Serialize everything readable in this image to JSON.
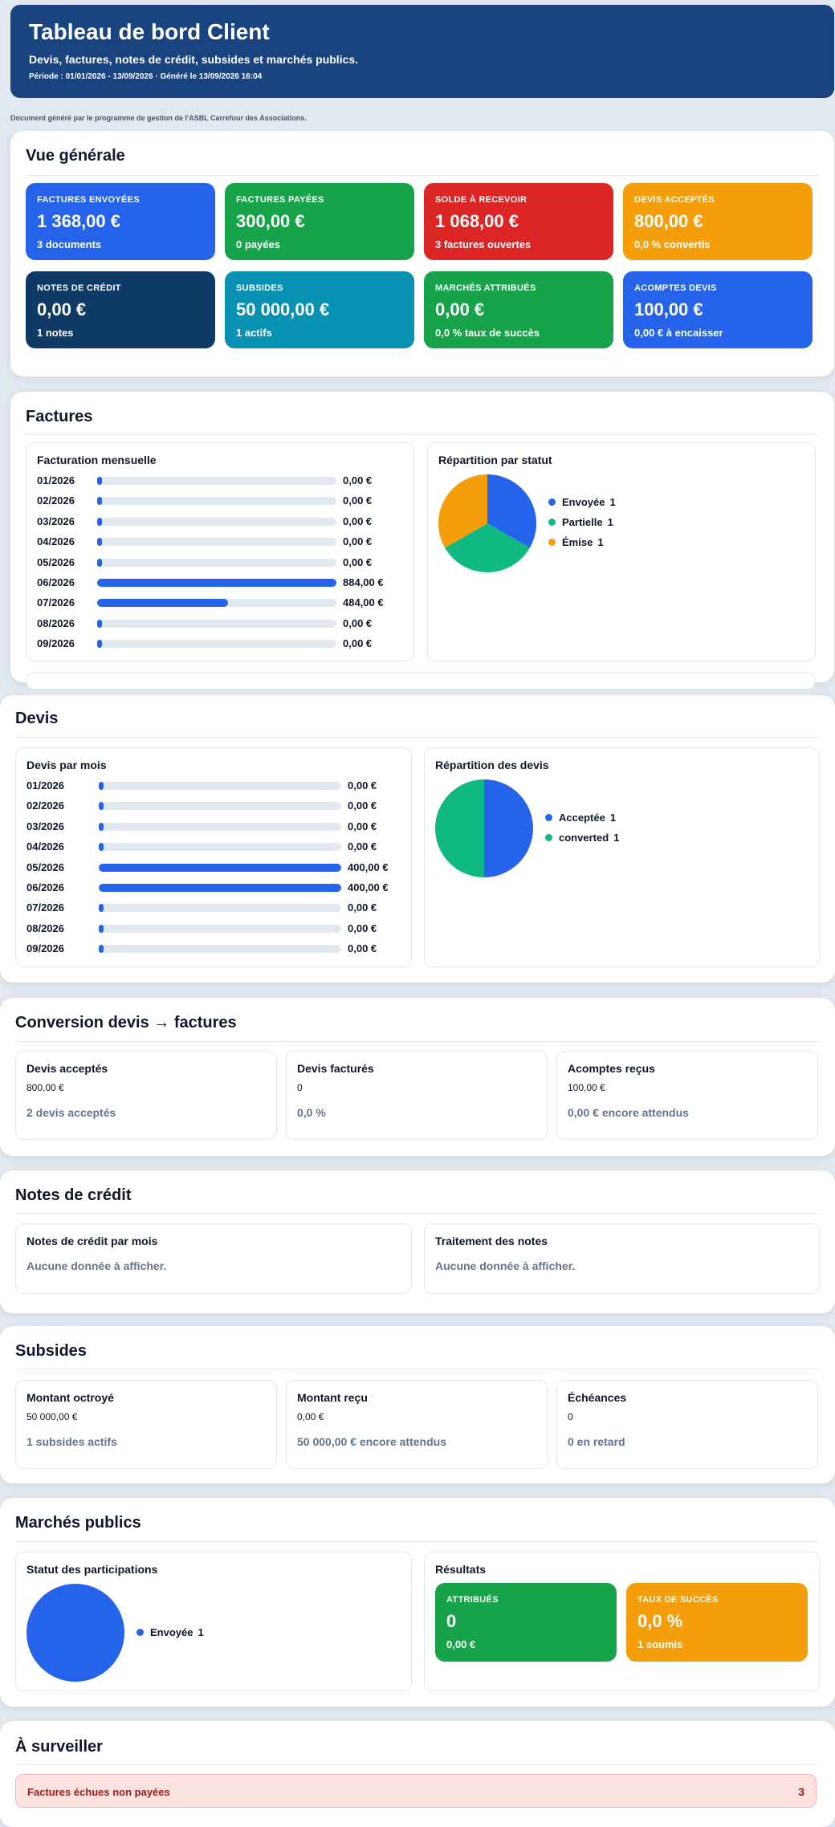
{
  "header": {
    "title": "Tableau de bord Client",
    "subtitle": "Devis, factures, notes de crédit, subsides et marchés publics.",
    "period": "Période : 01/01/2026 - 13/09/2026 · Généré le 13/09/2026 16:04"
  },
  "note": "Document généré par le programme de gestion de l'ASBL Carrefour des Associations.",
  "overview": {
    "title": "Vue générale",
    "cards": [
      {
        "label": "Factures envoyées",
        "value": "1 368,00 €",
        "sub": "3 documents",
        "color": "#2563eb"
      },
      {
        "label": "Factures payées",
        "value": "300,00 €",
        "sub": "0 payées",
        "color": "#16a34a"
      },
      {
        "label": "Solde à recevoir",
        "value": "1 068,00 €",
        "sub": "3 factures ouvertes",
        "color": "#dc2626"
      },
      {
        "label": "Devis acceptés",
        "value": "800,00 €",
        "sub": "0,0 % convertis",
        "color": "#f59e0b"
      },
      {
        "label": "Notes de crédit",
        "value": "0,00 €",
        "sub": "1 notes",
        "color": "#0f3a66"
      },
      {
        "label": "Subsides",
        "value": "50 000,00 €",
        "sub": "1 actifs",
        "color": "#0891b2"
      },
      {
        "label": "Marchés attribués",
        "value": "0,00 €",
        "sub": "0,0 % taux de succès",
        "color": "#16a34a"
      },
      {
        "label": "Acomptes devis",
        "value": "100,00 €",
        "sub": "0,00 € à encaisser",
        "color": "#2563eb"
      }
    ]
  },
  "factures": {
    "title": "Factures",
    "monthly_title": "Facturation mensuelle",
    "status_title": "Répartition par statut",
    "status_legend": [
      {
        "name": "Envoyée",
        "count": "1",
        "color": "#2563eb"
      },
      {
        "name": "Partielle",
        "count": "1",
        "color": "#10b981"
      },
      {
        "name": "Émise",
        "count": "1",
        "color": "#f59e0b"
      }
    ]
  },
  "devis": {
    "title": "Devis",
    "monthly_title": "Devis par mois",
    "status_title": "Répartition des devis",
    "status_legend": [
      {
        "name": "Acceptée",
        "count": "1",
        "color": "#2563eb"
      },
      {
        "name": "converted",
        "count": "1",
        "color": "#10b981"
      }
    ]
  },
  "conversion": {
    "title": "Conversion devis → factures",
    "items": [
      {
        "title": "Devis acceptés",
        "value": "800,00 €",
        "detail": "2 devis acceptés"
      },
      {
        "title": "Devis facturés",
        "value": "0",
        "detail": "0,0 %"
      },
      {
        "title": "Acomptes reçus",
        "value": "100,00 €",
        "detail": "0,00 € encore attendus"
      }
    ]
  },
  "credit": {
    "title": "Notes de crédit",
    "boxes": [
      {
        "title": "Notes de crédit par mois",
        "empty": "Aucune donnée à afficher."
      },
      {
        "title": "Traitement des notes",
        "empty": "Aucune donnée à afficher."
      }
    ]
  },
  "subsides": {
    "title": "Subsides",
    "items": [
      {
        "title": "Montant octroyé",
        "value": "50 000,00 €",
        "detail": "1 subsides actifs"
      },
      {
        "title": "Montant reçu",
        "value": "0,00 €",
        "detail": "50 000,00 € encore attendus"
      },
      {
        "title": "Échéances",
        "value": "0",
        "detail": "0 en retard"
      }
    ]
  },
  "marches": {
    "title": "Marchés publics",
    "status_title": "Statut des participations",
    "status_legend": [
      {
        "name": "Envoyée",
        "count": "1",
        "color": "#2563eb"
      }
    ],
    "results_title": "Résultats",
    "results": [
      {
        "label": "Attribués",
        "value": "0",
        "sub": "0,00 €",
        "color": "#16a34a"
      },
      {
        "label": "Taux de succès",
        "value": "0,0 %",
        "sub": "1 soumis",
        "color": "#f59e0b"
      }
    ]
  },
  "watch": {
    "title": "À surveiller",
    "alert_label": "Factures échues non payées",
    "alert_count": "3"
  },
  "chart_data": [
    {
      "type": "bar",
      "title": "Facturation mensuelle",
      "categories": [
        "01/2026",
        "02/2026",
        "03/2026",
        "04/2026",
        "05/2026",
        "06/2026",
        "07/2026",
        "08/2026",
        "09/2026"
      ],
      "values": [
        0,
        0,
        0,
        0,
        0,
        884,
        484,
        0,
        0
      ],
      "value_labels": [
        "0,00 €",
        "0,00 €",
        "0,00 €",
        "0,00 €",
        "0,00 €",
        "884,00 €",
        "484,00 €",
        "0,00 €",
        "0,00 €"
      ]
    },
    {
      "type": "pie",
      "title": "Répartition par statut",
      "categories": [
        "Envoyée",
        "Partielle",
        "Émise"
      ],
      "values": [
        1,
        1,
        1
      ],
      "colors": [
        "#2563eb",
        "#10b981",
        "#f59e0b"
      ]
    },
    {
      "type": "bar",
      "title": "Devis par mois",
      "categories": [
        "01/2026",
        "02/2026",
        "03/2026",
        "04/2026",
        "05/2026",
        "06/2026",
        "07/2026",
        "08/2026",
        "09/2026"
      ],
      "values": [
        0,
        0,
        0,
        0,
        400,
        400,
        0,
        0,
        0
      ],
      "value_labels": [
        "0,00 €",
        "0,00 €",
        "0,00 €",
        "0,00 €",
        "400,00 €",
        "400,00 €",
        "0,00 €",
        "0,00 €",
        "0,00 €"
      ]
    },
    {
      "type": "pie",
      "title": "Répartition des devis",
      "categories": [
        "Acceptée",
        "converted"
      ],
      "values": [
        1,
        1
      ],
      "colors": [
        "#2563eb",
        "#10b981"
      ]
    },
    {
      "type": "pie",
      "title": "Statut des participations",
      "categories": [
        "Envoyée"
      ],
      "values": [
        1
      ],
      "colors": [
        "#2563eb"
      ]
    }
  ]
}
